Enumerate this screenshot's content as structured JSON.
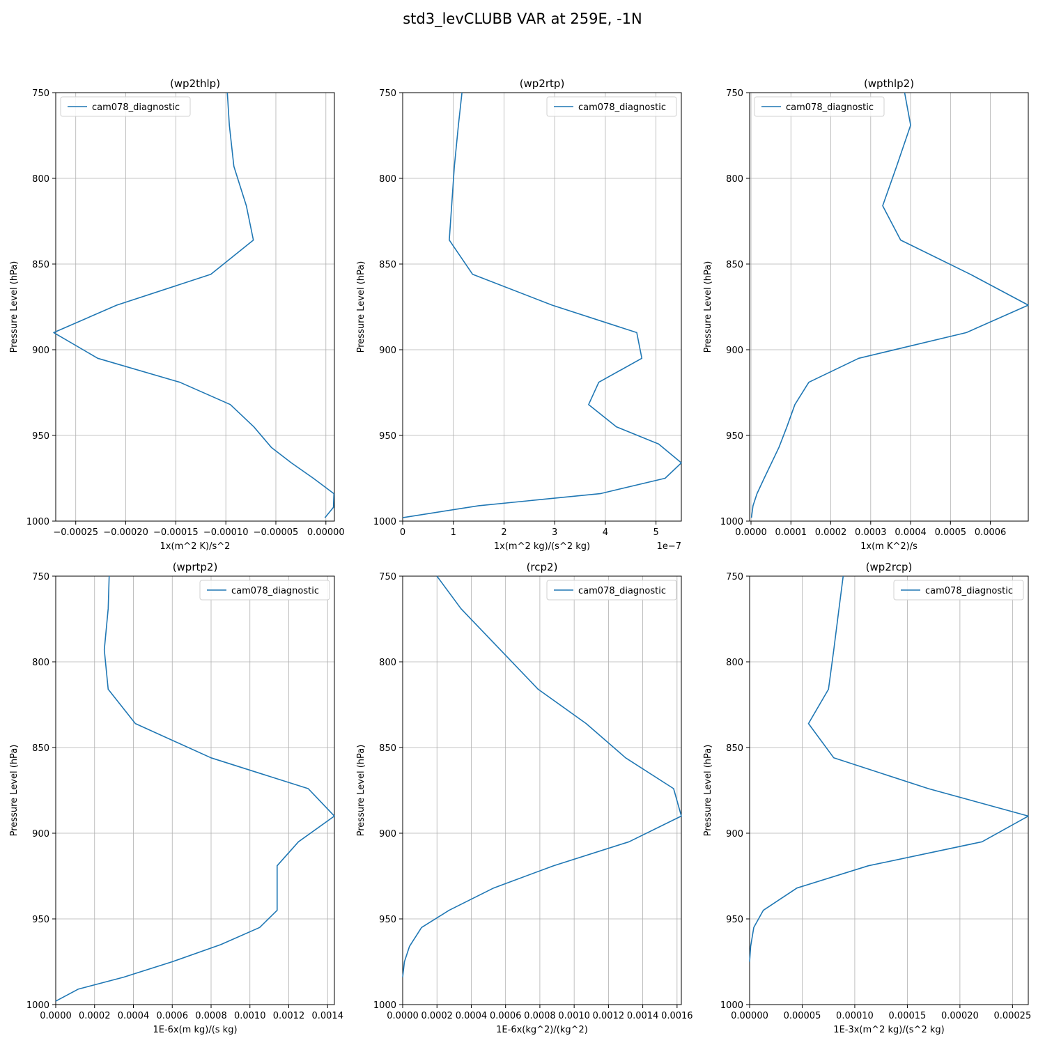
{
  "figure": {
    "title": "std3_levCLUBB VAR at 259E, -1N",
    "accent_color": "#1f77b4",
    "grid_color": "#b0b0b0"
  },
  "chart_data": [
    {
      "type": "line",
      "title": "(wp2thlp)",
      "xlabel": "1x(m^2 K)/s^2",
      "ylabel": "Pressure Level (hPa)",
      "xlim": [
        -0.00027,
        8.5e-06
      ],
      "ylim": [
        1000,
        750
      ],
      "x_ticks": [
        -0.00025,
        -0.0002,
        -0.00015,
        -0.0001,
        -5e-05,
        0.0
      ],
      "x_tick_labels": [
        "−0.00025",
        "−0.00020",
        "−0.00015",
        "−0.00010",
        "−0.00005",
        "0.00000"
      ],
      "y_ticks": [
        750,
        800,
        850,
        900,
        950,
        1000
      ],
      "y_tick_labels": [
        "750",
        "800",
        "850",
        "900",
        "950",
        "1000"
      ],
      "x_offset_label": "",
      "legend": {
        "label": "cam078_diagnostic",
        "position": "upper-left"
      },
      "grid": true,
      "series": [
        {
          "name": "cam078_diagnostic",
          "x": [
            -9.85e-05,
            -9.65e-05,
            -9.2e-05,
            -7.95e-05,
            -7.25e-05,
            -0.000115,
            -0.000209,
            -0.000272,
            -0.000228,
            -0.000146,
            -9.55e-05,
            -7.2e-05,
            -5.45e-05,
            -3.45e-05,
            -1.25e-05,
            8e-06,
            7.5e-06,
            -1e-06
          ],
          "y": [
            750,
            769,
            793,
            816,
            836,
            856,
            874,
            890,
            905,
            919,
            932,
            945,
            957,
            966,
            975,
            984,
            992,
            998
          ]
        }
      ]
    },
    {
      "type": "line",
      "title": "(wp2rtp)",
      "xlabel": "1x(m^2 kg)/(s^2 kg)",
      "ylabel": "Pressure Level (hPa)",
      "xlim": [
        0,
        5.5e-07
      ],
      "ylim": [
        1000,
        750
      ],
      "x_ticks": [
        0,
        1e-07,
        2e-07,
        3e-07,
        4e-07,
        5e-07
      ],
      "x_tick_labels": [
        "0",
        "1",
        "2",
        "3",
        "4",
        "5"
      ],
      "y_ticks": [
        750,
        800,
        850,
        900,
        950,
        1000
      ],
      "y_tick_labels": [
        "750",
        "800",
        "850",
        "900",
        "950",
        "1000"
      ],
      "x_offset_label": "1e−7",
      "legend": {
        "label": "cam078_diagnostic",
        "position": "upper-right"
      },
      "grid": true,
      "series": [
        {
          "name": "cam078_diagnostic",
          "x": [
            1.17e-07,
            1.1e-07,
            1.02e-07,
            9.2e-08,
            1.38e-07,
            2.95e-07,
            4.62e-07,
            4.72e-07,
            3.87e-07,
            3.67e-07,
            4.22e-07,
            5.05e-07,
            5.5e-07,
            5.18e-07,
            3.9e-07,
            1.5e-07,
            0
          ],
          "y": [
            750,
            769,
            793,
            836,
            856,
            874,
            890,
            905,
            919,
            932,
            945,
            955,
            966,
            975,
            984,
            991,
            998
          ]
        }
      ]
    },
    {
      "type": "line",
      "title": "(wpthlp2)",
      "xlabel": "1x(m K^2)/s",
      "ylabel": "Pressure Level (hPa)",
      "xlim": [
        -3.5e-06,
        0.000695
      ],
      "ylim": [
        1000,
        750
      ],
      "x_ticks": [
        0,
        0.0001,
        0.0002,
        0.0003,
        0.0004,
        0.0005,
        0.0006
      ],
      "x_tick_labels": [
        "0.0000",
        "0.0001",
        "0.0002",
        "0.0003",
        "0.0004",
        "0.0005",
        "0.0006"
      ],
      "y_ticks": [
        750,
        800,
        850,
        900,
        950,
        1000
      ],
      "y_tick_labels": [
        "750",
        "800",
        "850",
        "900",
        "950",
        "1000"
      ],
      "x_offset_label": "",
      "legend": {
        "label": "cam078_diagnostic",
        "position": "upper-left"
      },
      "grid": true,
      "series": [
        {
          "name": "cam078_diagnostic",
          "x": [
            0.000385,
            0.0004,
            0.000365,
            0.00033,
            0.000375,
            0.00055,
            0.000695,
            0.00054,
            0.00027,
            0.000145,
            0.00011,
            9e-05,
            7e-05,
            3.3e-05,
            1.5e-05,
            5e-06,
            1e-06
          ],
          "y": [
            750,
            769,
            793,
            816,
            836,
            856,
            874,
            890,
            905,
            919,
            932,
            945,
            957,
            975,
            984,
            991,
            998
          ]
        }
      ]
    },
    {
      "type": "line",
      "title": "(wprtp2)",
      "xlabel": "1E-6x(m kg)/(s kg)",
      "ylabel": "Pressure Level (hPa)",
      "xlim": [
        0,
        0.001435
      ],
      "ylim": [
        1000,
        750
      ],
      "x_ticks": [
        0,
        0.0002,
        0.0004,
        0.0006,
        0.0008,
        0.001,
        0.0012,
        0.0014
      ],
      "x_tick_labels": [
        "0.0000",
        "0.0002",
        "0.0004",
        "0.0006",
        "0.0008",
        "0.0010",
        "0.0012",
        "0.0014"
      ],
      "y_ticks": [
        750,
        800,
        850,
        900,
        950,
        1000
      ],
      "y_tick_labels": [
        "750",
        "800",
        "850",
        "900",
        "950",
        "1000"
      ],
      "x_offset_label": "",
      "legend": {
        "label": "cam078_diagnostic",
        "position": "upper-right"
      },
      "grid": true,
      "series": [
        {
          "name": "cam078_diagnostic",
          "x": [
            0.000275,
            0.00027,
            0.00025,
            0.00027,
            0.00041,
            0.0008,
            0.0013,
            0.001435,
            0.00125,
            0.00114,
            0.00114,
            0.00114,
            0.00105,
            0.00085,
            0.0006,
            0.00035,
            0.000115,
            0
          ],
          "y": [
            750,
            769,
            793,
            816,
            836,
            856,
            874,
            890,
            905,
            919,
            932,
            945,
            955,
            965,
            975,
            984,
            991,
            998
          ]
        }
      ]
    },
    {
      "type": "line",
      "title": "(rcp2)",
      "xlabel": "1E-6x(kg^2)/(kg^2)",
      "ylabel": "Pressure Level (hPa)",
      "xlim": [
        0,
        0.001625
      ],
      "ylim": [
        1000,
        750
      ],
      "x_ticks": [
        0,
        0.0002,
        0.0004,
        0.0006,
        0.0008,
        0.001,
        0.0012,
        0.0014,
        0.0016
      ],
      "x_tick_labels": [
        "0.0000",
        "0.0002",
        "0.0004",
        "0.0006",
        "0.0008",
        "0.0010",
        "0.0012",
        "0.0014",
        "0.0016"
      ],
      "y_ticks": [
        750,
        800,
        850,
        900,
        950,
        1000
      ],
      "y_tick_labels": [
        "750",
        "800",
        "850",
        "900",
        "950",
        "1000"
      ],
      "x_offset_label": "",
      "legend": {
        "label": "cam078_diagnostic",
        "position": "upper-right"
      },
      "grid": true,
      "series": [
        {
          "name": "cam078_diagnostic",
          "x": [
            0.0002,
            0.00034,
            0.00057,
            0.00079,
            0.00107,
            0.0013,
            0.00158,
            0.001625,
            0.00132,
            0.00088,
            0.00053,
            0.00027,
            0.00011,
            4e-05,
            1e-05,
            0
          ],
          "y": [
            750,
            769,
            793,
            816,
            836,
            856,
            874,
            890,
            905,
            919,
            932,
            945,
            955,
            966,
            975,
            984
          ]
        }
      ]
    },
    {
      "type": "line",
      "title": "(wp2rcp)",
      "xlabel": "1E-3x(m^2 kg)/(s^2 kg)",
      "ylabel": "Pressure Level (hPa)",
      "xlim": [
        0,
        0.000265
      ],
      "ylim": [
        1000,
        750
      ],
      "x_ticks": [
        0,
        5e-05,
        0.0001,
        0.00015,
        0.0002,
        0.00025
      ],
      "x_tick_labels": [
        "0.00000",
        "0.00005",
        "0.00010",
        "0.00015",
        "0.00020",
        "0.00025"
      ],
      "y_ticks": [
        750,
        800,
        850,
        900,
        950,
        1000
      ],
      "y_tick_labels": [
        "750",
        "800",
        "850",
        "900",
        "950",
        "1000"
      ],
      "x_offset_label": "",
      "legend": {
        "label": "cam078_diagnostic",
        "position": "upper-right"
      },
      "grid": true,
      "series": [
        {
          "name": "cam078_diagnostic",
          "x": [
            8.9e-05,
            8.5e-05,
            8e-05,
            7.5e-05,
            5.6e-05,
            8e-05,
            0.00017,
            0.000265,
            0.000221,
            0.000113,
            4.5e-05,
            1.3e-05,
            4e-06,
            1e-06,
            0
          ],
          "y": [
            750,
            769,
            793,
            816,
            836,
            856,
            874,
            890,
            905,
            919,
            932,
            945,
            955,
            966,
            975
          ]
        }
      ]
    }
  ]
}
